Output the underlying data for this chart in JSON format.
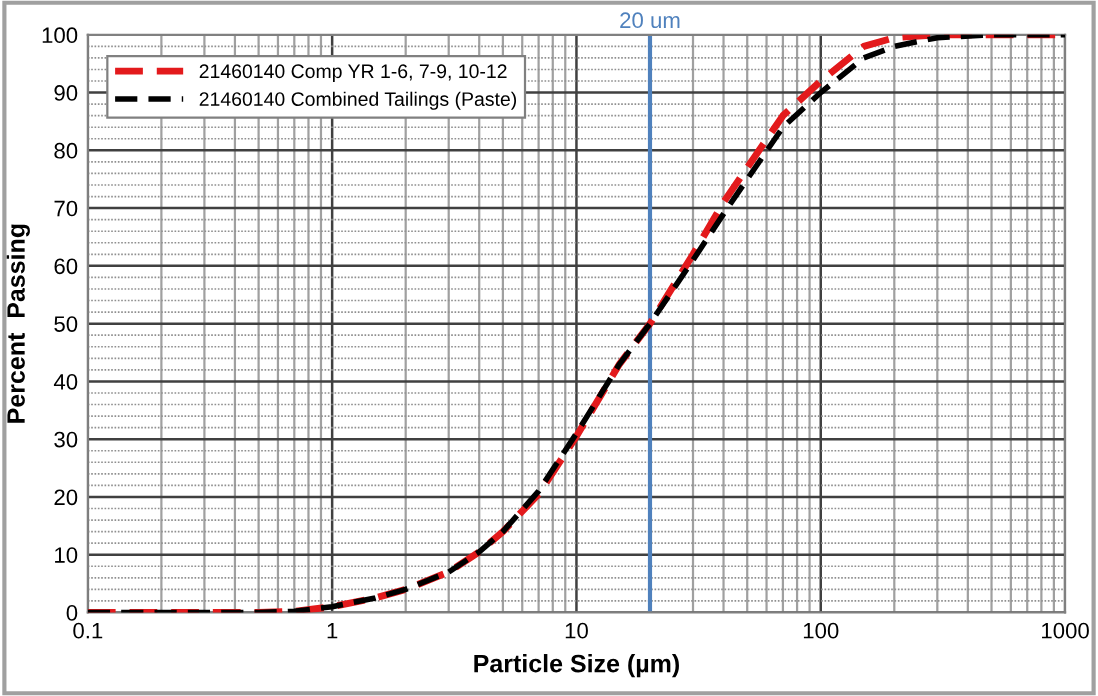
{
  "chart_data": {
    "type": "line",
    "xlabel": "Particle Size (µm)",
    "ylabel": "Percent  Passing",
    "log": "x",
    "xlim": [
      0.1,
      1000
    ],
    "xticks": [
      0.1,
      1,
      10,
      100,
      1000
    ],
    "ylim": [
      0,
      100
    ],
    "yticks": [
      0,
      10,
      20,
      30,
      40,
      50,
      60,
      70,
      80,
      90,
      100
    ],
    "grid": true,
    "legend": "top left",
    "marker": "none",
    "line_style": "dashed",
    "ref_lines": [
      {
        "axis": "x",
        "value": 20,
        "label": "20 um",
        "color": "#4f81bd"
      }
    ],
    "series": [
      {
        "name": "21460140 Comp YR 1-6, 7-9, 10-12",
        "color": "#e31a1c",
        "x": [
          0.1,
          0.3,
          0.5,
          0.7,
          1,
          1.5,
          2,
          3,
          4,
          5,
          7,
          10,
          15,
          20,
          30,
          40,
          50,
          70,
          100,
          150,
          200,
          300,
          500,
          1000
        ],
        "values": [
          0,
          0,
          0,
          0.2,
          1,
          2.5,
          4,
          7,
          10.5,
          14,
          20.5,
          30.5,
          43,
          50,
          62,
          71,
          77,
          86,
          92,
          98,
          99.5,
          100,
          100,
          100
        ]
      },
      {
        "name": "21460140 Combined Tailings (Paste)",
        "color": "#000000",
        "x": [
          0.1,
          0.3,
          0.5,
          0.7,
          1,
          1.5,
          2,
          3,
          4,
          5,
          7,
          10,
          15,
          20,
          30,
          40,
          50,
          70,
          100,
          150,
          200,
          300,
          500,
          1000
        ],
        "values": [
          0,
          0,
          0,
          0.2,
          1,
          2.5,
          4,
          7,
          10.5,
          14,
          21,
          31,
          43,
          50,
          61,
          69,
          75,
          84,
          90,
          96,
          98,
          99.5,
          100,
          100
        ]
      }
    ]
  }
}
